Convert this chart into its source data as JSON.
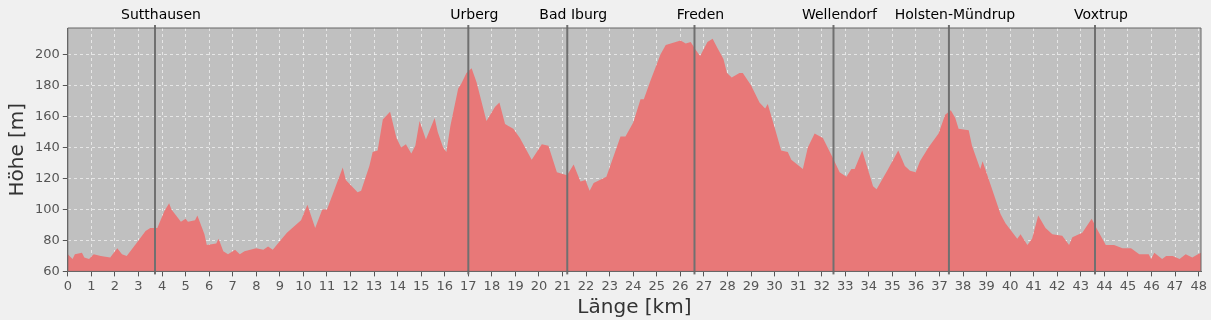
{
  "chart_data": {
    "type": "area",
    "xlabel": "Länge [km]",
    "ylabel": "Höhe [m]",
    "xlim": [
      0,
      48.1
    ],
    "xticks": [
      0,
      1,
      2,
      3,
      4,
      5,
      6,
      7,
      8,
      9,
      10,
      11,
      12,
      13,
      14,
      15,
      16,
      17,
      18,
      19,
      20,
      21,
      22,
      23,
      24,
      25,
      26,
      27,
      28,
      29,
      30,
      31,
      32,
      33,
      34,
      35,
      36,
      37,
      38,
      39,
      40,
      41,
      42,
      43,
      44,
      45,
      46,
      47,
      48
    ],
    "ylim": [
      60,
      217
    ],
    "yticks": [
      60,
      80,
      100,
      120,
      140,
      160,
      180,
      200
    ],
    "grid": true,
    "legend": false,
    "marker": "none",
    "series": [
      {
        "color": "#e87878",
        "x": [
          0,
          0.2,
          0.3,
          0.6,
          0.7,
          0.9,
          1.1,
          1.4,
          1.8,
          2.1,
          2.3,
          2.5,
          3.0,
          3.3,
          3.5,
          3.8,
          4.1,
          4.3,
          4.4,
          4.8,
          5.0,
          5.1,
          5.4,
          5.5,
          5.8,
          5.9,
          6.3,
          6.4,
          6.6,
          6.8,
          7.1,
          7.3,
          7.5,
          8.0,
          8.3,
          8.5,
          8.7,
          8.97,
          9.3,
          9.6,
          9.9,
          10.17,
          10.5,
          10.8,
          11.0,
          11.2,
          11.67,
          11.8,
          12.3,
          12.45,
          12.8,
          12.94,
          13.15,
          13.37,
          13.68,
          13.95,
          14.15,
          14.35,
          14.58,
          14.75,
          14.93,
          15.2,
          15.57,
          15.7,
          15.93,
          16.07,
          16.24,
          16.57,
          16.7,
          16.92,
          17.14,
          17.35,
          17.77,
          18.13,
          18.32,
          18.56,
          18.91,
          19.19,
          19.69,
          20.12,
          20.4,
          20.76,
          21.19,
          21.47,
          21.76,
          21.97,
          22.15,
          22.32,
          22.86,
          23.46,
          23.67,
          24.0,
          24.31,
          24.45,
          24.73,
          25.16,
          25.38,
          26.01,
          26.23,
          26.44,
          26.65,
          26.84,
          27.15,
          27.37,
          27.58,
          27.83,
          27.98,
          28.18,
          28.51,
          28.65,
          29.0,
          29.36,
          29.6,
          29.71,
          30.0,
          30.28,
          30.56,
          30.71,
          31.2,
          31.41,
          31.7,
          32.05,
          32.48,
          32.76,
          33.05,
          33.26,
          33.4,
          33.72,
          34.18,
          34.33,
          34.82,
          35.25,
          35.53,
          35.75,
          35.99,
          36.17,
          36.53,
          36.96,
          37.24,
          37.48,
          37.67,
          37.81,
          38.24,
          38.38,
          38.73,
          38.83,
          39.59,
          39.8,
          40.3,
          40.44,
          40.73,
          40.93,
          41.19,
          41.5,
          41.79,
          42.21,
          42.5,
          42.64,
          43.06,
          43.46,
          43.66,
          44.06,
          44.41,
          44.77,
          45.13,
          45.48,
          45.88,
          45.98,
          46.12,
          46.45,
          46.62,
          46.9,
          47.19,
          47.45,
          47.73,
          47.97,
          48.1
        ],
        "values": [
          71,
          68,
          71,
          72,
          69,
          68,
          71,
          70,
          69,
          75,
          71,
          70,
          80,
          86,
          88,
          88,
          99,
          104,
          100,
          92,
          94,
          92,
          93,
          96,
          84,
          77,
          78,
          81,
          73,
          71,
          74,
          71,
          73,
          75,
          74,
          76,
          74,
          79,
          85,
          89,
          93,
          103,
          88,
          100,
          100,
          108,
          127,
          119,
          111,
          112,
          128,
          137,
          138,
          158,
          163,
          146,
          140,
          142,
          136,
          141,
          157,
          145,
          159,
          150,
          140,
          137,
          154,
          178,
          181,
          188,
          191,
          182,
          157,
          166,
          169,
          155,
          152,
          146,
          132,
          142,
          141,
          124,
          122,
          129,
          118,
          119,
          112,
          117,
          121,
          147,
          147,
          156,
          171,
          171,
          183,
          200,
          206,
          209,
          207,
          208,
          203,
          199,
          208,
          210,
          204,
          197,
          188,
          185,
          188,
          188,
          180,
          169,
          165,
          168,
          153,
          138,
          137,
          132,
          126,
          140,
          149,
          146,
          133,
          124,
          121,
          126,
          126,
          138,
          115,
          113,
          126,
          138,
          128,
          125,
          124,
          131,
          140,
          149,
          161,
          164,
          159,
          152,
          151,
          141,
          126,
          131,
          97,
          91,
          81,
          84,
          77,
          81,
          96,
          88,
          84,
          83,
          77,
          82,
          85,
          94,
          88,
          77,
          77,
          75,
          75,
          71,
          71,
          68,
          72,
          68,
          70,
          70,
          68,
          71,
          69,
          71,
          72
        ]
      }
    ],
    "ref_lines": [
      {
        "axis": "x",
        "value": 3.7,
        "label": "Sutthausen",
        "color": "#707070"
      },
      {
        "axis": "x",
        "value": 17.0,
        "label": "Urberg",
        "color": "#707070"
      },
      {
        "axis": "x",
        "value": 21.2,
        "label": "Bad Iburg",
        "color": "#707070"
      },
      {
        "axis": "x",
        "value": 26.6,
        "label": "Freden",
        "color": "#707070"
      },
      {
        "axis": "x",
        "value": 32.5,
        "label": "Wellendorf",
        "color": "#707070"
      },
      {
        "axis": "x",
        "value": 37.4,
        "label": "Holsten-Mündrup",
        "color": "#707070"
      },
      {
        "axis": "x",
        "value": 43.6,
        "label": "Voxtrup",
        "color": "#707070"
      }
    ]
  }
}
